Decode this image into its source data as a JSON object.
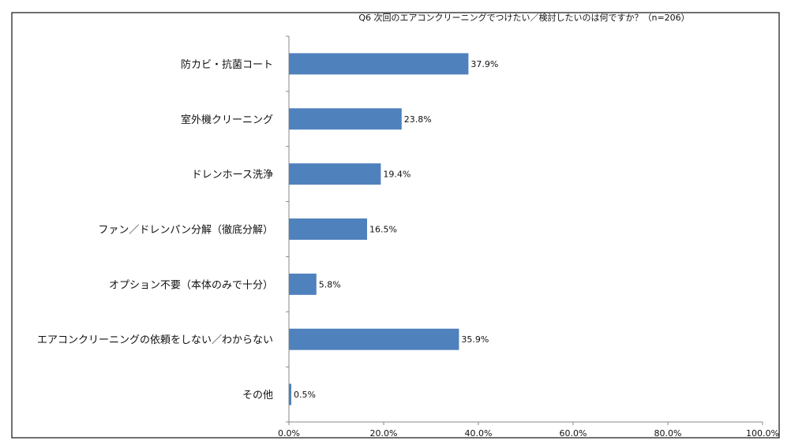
{
  "chart_data": {
    "type": "bar",
    "orientation": "horizontal",
    "title": "Q6 次回のエアコンクリーニングでつけたい／検討したいのは何ですか？（n=206）",
    "categories": [
      "防カビ・抗菌コート",
      "室外機クリーニング",
      "ドレンホース洗浄",
      "ファン／ドレンパン分解（徹底分解）",
      "オプション不要（本体のみで十分）",
      "エアコンクリーニングの依頼をしない／わからない",
      "その他"
    ],
    "values": [
      37.9,
      23.8,
      19.4,
      16.5,
      5.8,
      35.9,
      0.5
    ],
    "value_labels": [
      "37.9%",
      "23.8%",
      "19.4%",
      "16.5%",
      "5.8%",
      "35.9%",
      "0.5%"
    ],
    "xlim": [
      0,
      100
    ],
    "x_ticks": [
      0,
      20,
      40,
      60,
      80,
      100
    ],
    "x_tick_labels": [
      "0.0%",
      "20.0%",
      "40.0%",
      "60.0%",
      "80.0%",
      "100.0%"
    ],
    "xlabel": "",
    "ylabel": "",
    "grid": false,
    "legend": "none",
    "bar_color": "#4f81bd"
  }
}
